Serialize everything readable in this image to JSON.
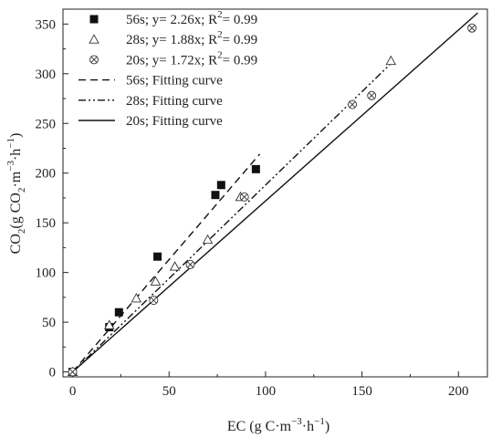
{
  "chart_data": {
    "type": "scatter",
    "xlabel": {
      "main": "EC (g C·m",
      "sup1": "−3",
      "mid": "·h",
      "sup2": "−1",
      "end": ")"
    },
    "ylabel": {
      "a": "CO",
      "sub1": "2",
      "b": "(g CO",
      "sub2": "2",
      "c": "·m",
      "sup1": "−3",
      "d": "·h",
      "sup2": "−1",
      "e": ")"
    },
    "xlim": [
      -5,
      215
    ],
    "ylim": [
      -5,
      365
    ],
    "xticks": [
      0,
      50,
      100,
      150,
      200
    ],
    "yticks": [
      0,
      50,
      100,
      150,
      200,
      250,
      300,
      350
    ],
    "legend_position": "top-left",
    "series": [
      {
        "name": "56s; y= 2.26x; R",
        "name_sup": "2",
        "name_tail": "= 0.99",
        "marker": "filled-square",
        "points": [
          [
            0,
            0
          ],
          [
            19,
            45
          ],
          [
            24,
            60
          ],
          [
            44,
            116
          ],
          [
            74,
            178
          ],
          [
            77,
            188
          ],
          [
            95,
            204
          ]
        ]
      },
      {
        "name": "28s; y= 1.88x; R",
        "name_sup": "2",
        "name_tail": "= 0.99",
        "marker": "open-triangle",
        "points": [
          [
            0,
            0
          ],
          [
            19,
            47
          ],
          [
            33,
            74
          ],
          [
            43,
            91
          ],
          [
            53,
            106
          ],
          [
            70,
            133
          ],
          [
            87,
            176
          ],
          [
            165,
            313
          ]
        ]
      },
      {
        "name": "20s; y= 1.72x; R",
        "name_sup": "2",
        "name_tail": "= 0.99",
        "marker": "crossed-circle",
        "points": [
          [
            0,
            0
          ],
          [
            42,
            72
          ],
          [
            61,
            108
          ],
          [
            89,
            176
          ],
          [
            145,
            269
          ],
          [
            155,
            278
          ],
          [
            207,
            346
          ]
        ]
      }
    ],
    "fits": [
      {
        "name": "56s; Fitting curve",
        "slope": 2.26,
        "x_range": [
          0,
          97
        ],
        "dash": "dashed"
      },
      {
        "name": "28s; Fitting curve",
        "slope": 1.88,
        "x_range": [
          0,
          166
        ],
        "dash": "dash-dot-dot"
      },
      {
        "name": "20s; Fitting curve",
        "slope": 1.72,
        "x_range": [
          0,
          210
        ],
        "dash": "solid"
      }
    ]
  }
}
